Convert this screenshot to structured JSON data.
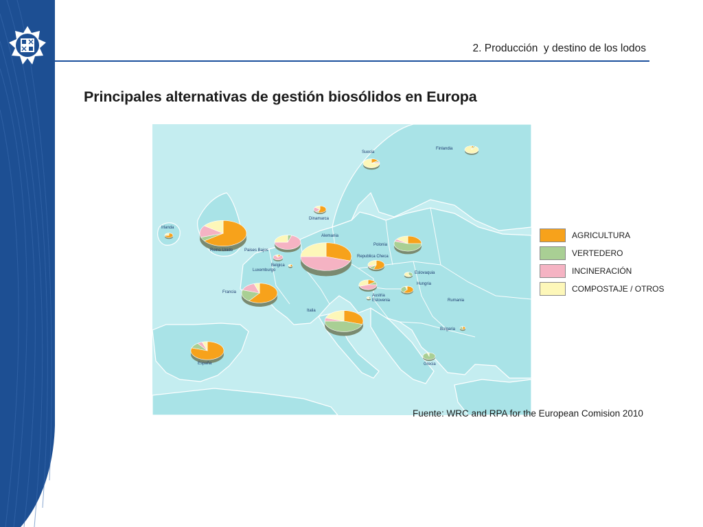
{
  "header": {
    "title": "2. Producción  y destino de los lodos"
  },
  "main": {
    "title": "Principales alternativas de gestión biosólidos en Europa"
  },
  "legend": {
    "items": [
      {
        "label": "AGRICULTURA",
        "color": "#f7a21b"
      },
      {
        "label": "VERTEDERO",
        "color": "#a9cf94"
      },
      {
        "label": "INCINERACIÓN",
        "color": "#f5b3c3"
      },
      {
        "label": "COMPOSTAJE / OTROS",
        "color": "#fdf7b9"
      }
    ]
  },
  "source": {
    "text": "Fuente: WRC and RPA for the European Comision 2010"
  },
  "colors": {
    "sea": "#c4edf0",
    "land": "#a9e3e7",
    "border": "#ffffff",
    "side_band": "#1d4f93",
    "rule": "#1b4f9c"
  },
  "chart_data": {
    "type": "pie",
    "title": "Principales alternativas de gestión biosólidos en Europa",
    "categories": [
      "AGRICULTURA",
      "VERTEDERO",
      "INCINERACIÓN",
      "COMPOSTAJE / OTROS"
    ],
    "countries": [
      {
        "name": "Suecia",
        "values": [
          15,
          5,
          5,
          75
        ]
      },
      {
        "name": "Finlandia",
        "values": [
          5,
          5,
          0,
          90
        ]
      },
      {
        "name": "Irlanda",
        "values": [
          75,
          5,
          0,
          20
        ]
      },
      {
        "name": "Dinamarca",
        "values": [
          55,
          5,
          25,
          15
        ]
      },
      {
        "name": "Reino Unido",
        "values": [
          65,
          5,
          15,
          15
        ]
      },
      {
        "name": "Paises Bajos",
        "values": [
          0,
          5,
          70,
          25
        ]
      },
      {
        "name": "Belgica",
        "values": [
          10,
          0,
          80,
          10
        ]
      },
      {
        "name": "Luxemburgo",
        "values": [
          50,
          10,
          0,
          40
        ]
      },
      {
        "name": "Alemania",
        "values": [
          30,
          0,
          45,
          25
        ]
      },
      {
        "name": "Polonia",
        "values": [
          25,
          55,
          5,
          15
        ]
      },
      {
        "name": "Republica Checa",
        "values": [
          55,
          10,
          5,
          30
        ]
      },
      {
        "name": "Eslovaquia",
        "values": [
          0,
          40,
          0,
          60
        ]
      },
      {
        "name": "Francia",
        "values": [
          60,
          20,
          15,
          5
        ]
      },
      {
        "name": "Austria",
        "values": [
          15,
          10,
          45,
          30
        ]
      },
      {
        "name": "Eslovenia",
        "values": [
          5,
          45,
          10,
          40
        ]
      },
      {
        "name": "Hungria",
        "values": [
          60,
          35,
          0,
          5
        ]
      },
      {
        "name": "Italia",
        "values": [
          30,
          45,
          5,
          20
        ]
      },
      {
        "name": "Rumania",
        "values": []
      },
      {
        "name": "Bulgaria",
        "values": [
          50,
          45,
          0,
          5
        ]
      },
      {
        "name": "España",
        "values": [
          80,
          10,
          5,
          5
        ]
      },
      {
        "name": "Grecia",
        "values": [
          0,
          95,
          0,
          5
        ]
      }
    ]
  }
}
